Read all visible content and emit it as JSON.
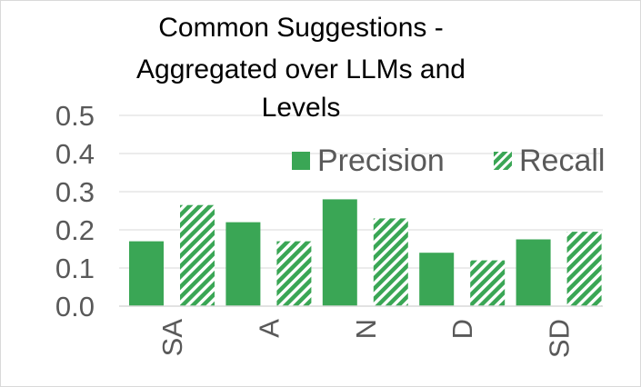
{
  "chart_data": {
    "type": "bar",
    "title": "Common Suggestions - Aggregated over LLMs and Levels",
    "title_lines": [
      "Common Suggestions -",
      "Aggregated over LLMs and",
      "Levels"
    ],
    "categories": [
      "SA",
      "A",
      "N",
      "D",
      "SD"
    ],
    "series": [
      {
        "name": "Precision",
        "values": [
          0.17,
          0.22,
          0.28,
          0.14,
          0.175
        ],
        "color": "#3aa655",
        "pattern": "solid"
      },
      {
        "name": "Recall",
        "values": [
          0.265,
          0.17,
          0.23,
          0.12,
          0.195
        ],
        "color": "#3aa655",
        "pattern": "diagonal-hatch"
      }
    ],
    "ylim": [
      0,
      0.5
    ],
    "yticks": [
      "0.0",
      "0.1",
      "0.2",
      "0.3",
      "0.4",
      "0.5"
    ],
    "grid": true,
    "legend": "top-right"
  }
}
